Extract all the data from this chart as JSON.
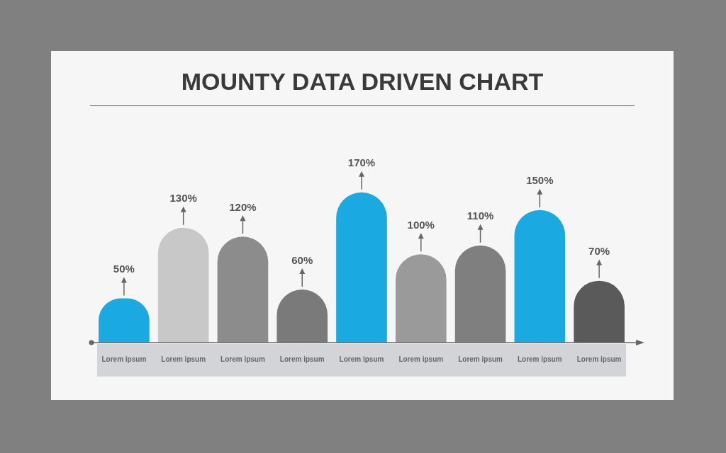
{
  "chart_data": {
    "type": "bar",
    "title": "MOUNTY DATA DRIVEN CHART",
    "categories": [
      "Lorem ipsum",
      "Lorem ipsum",
      "Lorem ipsum",
      "Lorem ipsum",
      "Lorem ipsum",
      "Lorem ipsum",
      "Lorem ipsum",
      "Lorem ipsum",
      "Lorem ipsum"
    ],
    "values": [
      50,
      130,
      120,
      60,
      170,
      100,
      110,
      150,
      70
    ],
    "value_labels": [
      "50%",
      "130%",
      "120%",
      "60%",
      "170%",
      "100%",
      "110%",
      "150%",
      "70%"
    ],
    "colors": [
      "#1aa9e0",
      "#c8c8c8",
      "#8c8c8c",
      "#7a7a7a",
      "#1aa9e0",
      "#9a9a9a",
      "#7f7f7f",
      "#1aa9e0",
      "#5a5a5a"
    ],
    "grid": false,
    "legend": false
  }
}
